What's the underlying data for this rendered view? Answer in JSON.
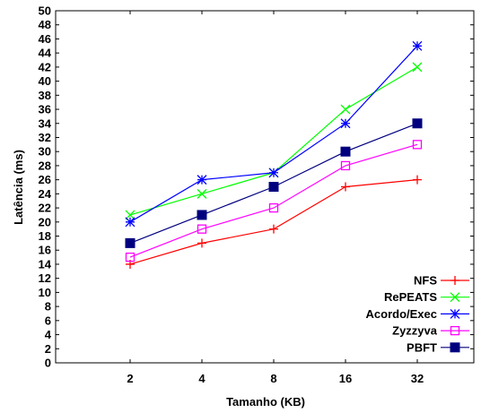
{
  "chart_data": {
    "type": "line",
    "xlabel": "Tamanho (KB)",
    "ylabel": "Latência (ms)",
    "categories": [
      "2",
      "4",
      "8",
      "16",
      "32"
    ],
    "ylim": [
      0,
      50
    ],
    "yticks": [
      0,
      2,
      4,
      6,
      8,
      10,
      12,
      14,
      16,
      18,
      20,
      22,
      24,
      26,
      28,
      30,
      32,
      34,
      36,
      38,
      40,
      42,
      44,
      46,
      48,
      50
    ],
    "grid": false,
    "legend_position": "bottom-right",
    "series": [
      {
        "name": "NFS",
        "marker": "plus",
        "color": "#ff0000",
        "values": [
          14,
          17,
          19,
          25,
          26
        ]
      },
      {
        "name": "RePEATS",
        "marker": "cross",
        "color": "#00ff00",
        "values": [
          21,
          24,
          27,
          36,
          42
        ]
      },
      {
        "name": "Acordo/Exec",
        "marker": "star",
        "color": "#0000ff",
        "values": [
          20,
          26,
          27,
          34,
          45
        ]
      },
      {
        "name": "Zyzzyva",
        "marker": "open-square",
        "color": "#ff00ff",
        "values": [
          15,
          19,
          22,
          28,
          31
        ]
      },
      {
        "name": "PBFT",
        "marker": "filled-square",
        "color": "#00007f",
        "values": [
          17,
          21,
          25,
          30,
          34
        ]
      }
    ]
  }
}
